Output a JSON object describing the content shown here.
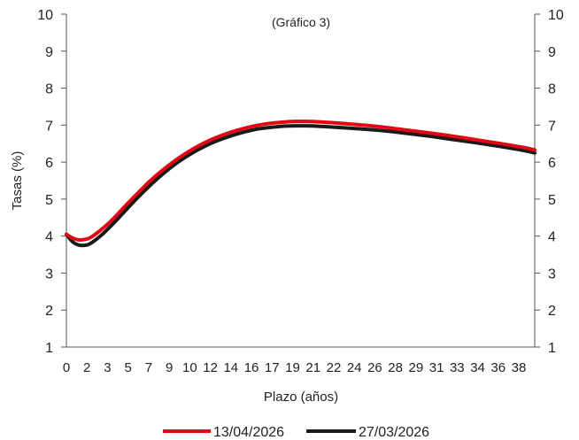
{
  "chart_data": {
    "type": "line",
    "subtitle": "(Gráfico 3)",
    "xlabel": "Plazo (años)",
    "ylabel": "Tasas (%)",
    "xlim": [
      0,
      39
    ],
    "ylim": [
      1,
      10
    ],
    "x_ticks": [
      "0",
      "2",
      "3",
      "5",
      "7",
      "9",
      "10",
      "12",
      "14",
      "16",
      "17",
      "19",
      "21",
      "22",
      "24",
      "26",
      "28",
      "29",
      "31",
      "33",
      "34",
      "36",
      "38"
    ],
    "y_ticks": [
      1,
      2,
      3,
      4,
      5,
      6,
      7,
      8,
      9,
      10
    ],
    "grid": false,
    "legend_position": "bottom",
    "series": [
      {
        "name": "13/04/2026",
        "color": "#e30613",
        "x": [
          0,
          0.5,
          1,
          1.5,
          2,
          3,
          4,
          5,
          6,
          7,
          8,
          9,
          10,
          11,
          12,
          13,
          14,
          15,
          16,
          17,
          18,
          19,
          20,
          21,
          22,
          24,
          26,
          28,
          30,
          32,
          34,
          36,
          38,
          39
        ],
        "y": [
          4.05,
          3.95,
          3.9,
          3.91,
          3.96,
          4.2,
          4.5,
          4.85,
          5.18,
          5.5,
          5.78,
          6.03,
          6.25,
          6.44,
          6.6,
          6.73,
          6.84,
          6.93,
          7.0,
          7.05,
          7.08,
          7.1,
          7.1,
          7.09,
          7.07,
          7.02,
          6.96,
          6.88,
          6.8,
          6.71,
          6.61,
          6.51,
          6.4,
          6.33
        ]
      },
      {
        "name": "27/03/2026",
        "color": "#1a1a1a",
        "x": [
          0,
          0.5,
          1,
          1.5,
          2,
          3,
          4,
          5,
          6,
          7,
          8,
          9,
          10,
          11,
          12,
          13,
          14,
          15,
          16,
          17,
          18,
          19,
          20,
          21,
          22,
          24,
          26,
          28,
          30,
          32,
          34,
          36,
          38,
          39
        ],
        "y": [
          4.05,
          3.85,
          3.76,
          3.75,
          3.8,
          4.05,
          4.37,
          4.72,
          5.06,
          5.38,
          5.67,
          5.93,
          6.15,
          6.34,
          6.5,
          6.63,
          6.74,
          6.83,
          6.9,
          6.94,
          6.97,
          6.98,
          6.98,
          6.97,
          6.95,
          6.91,
          6.86,
          6.79,
          6.71,
          6.62,
          6.53,
          6.43,
          6.32,
          6.25
        ]
      }
    ]
  }
}
